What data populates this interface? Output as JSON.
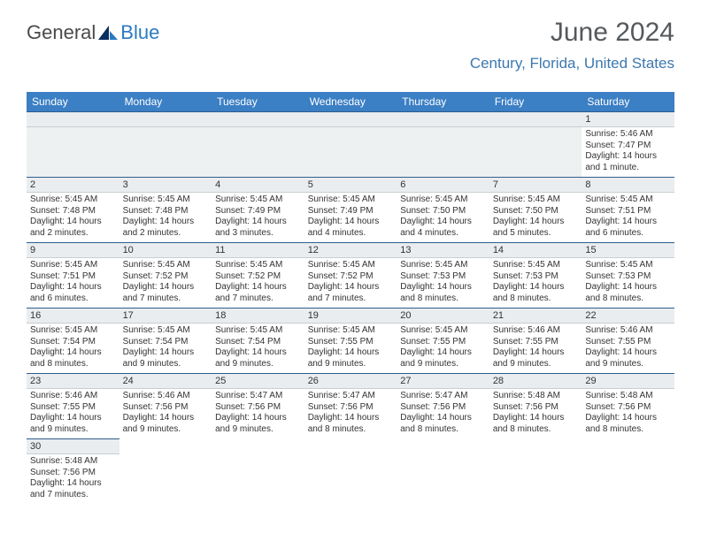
{
  "brand": {
    "part1": "General",
    "part2": "Blue"
  },
  "title": "June 2024",
  "location": "Century, Florida, United States",
  "colors": {
    "header_bg": "#3b7fc4",
    "header_text": "#ffffff",
    "accent": "#3c78b0",
    "daynum_bg": "#e9edef",
    "border": "#2f5d8f"
  },
  "weekdays": [
    "Sunday",
    "Monday",
    "Tuesday",
    "Wednesday",
    "Thursday",
    "Friday",
    "Saturday"
  ],
  "lead_empty": 6,
  "days": [
    {
      "n": "1",
      "sunrise": "Sunrise: 5:46 AM",
      "sunset": "Sunset: 7:47 PM",
      "daylight1": "Daylight: 14 hours",
      "daylight2": "and 1 minute."
    },
    {
      "n": "2",
      "sunrise": "Sunrise: 5:45 AM",
      "sunset": "Sunset: 7:48 PM",
      "daylight1": "Daylight: 14 hours",
      "daylight2": "and 2 minutes."
    },
    {
      "n": "3",
      "sunrise": "Sunrise: 5:45 AM",
      "sunset": "Sunset: 7:48 PM",
      "daylight1": "Daylight: 14 hours",
      "daylight2": "and 2 minutes."
    },
    {
      "n": "4",
      "sunrise": "Sunrise: 5:45 AM",
      "sunset": "Sunset: 7:49 PM",
      "daylight1": "Daylight: 14 hours",
      "daylight2": "and 3 minutes."
    },
    {
      "n": "5",
      "sunrise": "Sunrise: 5:45 AM",
      "sunset": "Sunset: 7:49 PM",
      "daylight1": "Daylight: 14 hours",
      "daylight2": "and 4 minutes."
    },
    {
      "n": "6",
      "sunrise": "Sunrise: 5:45 AM",
      "sunset": "Sunset: 7:50 PM",
      "daylight1": "Daylight: 14 hours",
      "daylight2": "and 4 minutes."
    },
    {
      "n": "7",
      "sunrise": "Sunrise: 5:45 AM",
      "sunset": "Sunset: 7:50 PM",
      "daylight1": "Daylight: 14 hours",
      "daylight2": "and 5 minutes."
    },
    {
      "n": "8",
      "sunrise": "Sunrise: 5:45 AM",
      "sunset": "Sunset: 7:51 PM",
      "daylight1": "Daylight: 14 hours",
      "daylight2": "and 6 minutes."
    },
    {
      "n": "9",
      "sunrise": "Sunrise: 5:45 AM",
      "sunset": "Sunset: 7:51 PM",
      "daylight1": "Daylight: 14 hours",
      "daylight2": "and 6 minutes."
    },
    {
      "n": "10",
      "sunrise": "Sunrise: 5:45 AM",
      "sunset": "Sunset: 7:52 PM",
      "daylight1": "Daylight: 14 hours",
      "daylight2": "and 7 minutes."
    },
    {
      "n": "11",
      "sunrise": "Sunrise: 5:45 AM",
      "sunset": "Sunset: 7:52 PM",
      "daylight1": "Daylight: 14 hours",
      "daylight2": "and 7 minutes."
    },
    {
      "n": "12",
      "sunrise": "Sunrise: 5:45 AM",
      "sunset": "Sunset: 7:52 PM",
      "daylight1": "Daylight: 14 hours",
      "daylight2": "and 7 minutes."
    },
    {
      "n": "13",
      "sunrise": "Sunrise: 5:45 AM",
      "sunset": "Sunset: 7:53 PM",
      "daylight1": "Daylight: 14 hours",
      "daylight2": "and 8 minutes."
    },
    {
      "n": "14",
      "sunrise": "Sunrise: 5:45 AM",
      "sunset": "Sunset: 7:53 PM",
      "daylight1": "Daylight: 14 hours",
      "daylight2": "and 8 minutes."
    },
    {
      "n": "15",
      "sunrise": "Sunrise: 5:45 AM",
      "sunset": "Sunset: 7:53 PM",
      "daylight1": "Daylight: 14 hours",
      "daylight2": "and 8 minutes."
    },
    {
      "n": "16",
      "sunrise": "Sunrise: 5:45 AM",
      "sunset": "Sunset: 7:54 PM",
      "daylight1": "Daylight: 14 hours",
      "daylight2": "and 8 minutes."
    },
    {
      "n": "17",
      "sunrise": "Sunrise: 5:45 AM",
      "sunset": "Sunset: 7:54 PM",
      "daylight1": "Daylight: 14 hours",
      "daylight2": "and 9 minutes."
    },
    {
      "n": "18",
      "sunrise": "Sunrise: 5:45 AM",
      "sunset": "Sunset: 7:54 PM",
      "daylight1": "Daylight: 14 hours",
      "daylight2": "and 9 minutes."
    },
    {
      "n": "19",
      "sunrise": "Sunrise: 5:45 AM",
      "sunset": "Sunset: 7:55 PM",
      "daylight1": "Daylight: 14 hours",
      "daylight2": "and 9 minutes."
    },
    {
      "n": "20",
      "sunrise": "Sunrise: 5:45 AM",
      "sunset": "Sunset: 7:55 PM",
      "daylight1": "Daylight: 14 hours",
      "daylight2": "and 9 minutes."
    },
    {
      "n": "21",
      "sunrise": "Sunrise: 5:46 AM",
      "sunset": "Sunset: 7:55 PM",
      "daylight1": "Daylight: 14 hours",
      "daylight2": "and 9 minutes."
    },
    {
      "n": "22",
      "sunrise": "Sunrise: 5:46 AM",
      "sunset": "Sunset: 7:55 PM",
      "daylight1": "Daylight: 14 hours",
      "daylight2": "and 9 minutes."
    },
    {
      "n": "23",
      "sunrise": "Sunrise: 5:46 AM",
      "sunset": "Sunset: 7:55 PM",
      "daylight1": "Daylight: 14 hours",
      "daylight2": "and 9 minutes."
    },
    {
      "n": "24",
      "sunrise": "Sunrise: 5:46 AM",
      "sunset": "Sunset: 7:56 PM",
      "daylight1": "Daylight: 14 hours",
      "daylight2": "and 9 minutes."
    },
    {
      "n": "25",
      "sunrise": "Sunrise: 5:47 AM",
      "sunset": "Sunset: 7:56 PM",
      "daylight1": "Daylight: 14 hours",
      "daylight2": "and 9 minutes."
    },
    {
      "n": "26",
      "sunrise": "Sunrise: 5:47 AM",
      "sunset": "Sunset: 7:56 PM",
      "daylight1": "Daylight: 14 hours",
      "daylight2": "and 8 minutes."
    },
    {
      "n": "27",
      "sunrise": "Sunrise: 5:47 AM",
      "sunset": "Sunset: 7:56 PM",
      "daylight1": "Daylight: 14 hours",
      "daylight2": "and 8 minutes."
    },
    {
      "n": "28",
      "sunrise": "Sunrise: 5:48 AM",
      "sunset": "Sunset: 7:56 PM",
      "daylight1": "Daylight: 14 hours",
      "daylight2": "and 8 minutes."
    },
    {
      "n": "29",
      "sunrise": "Sunrise: 5:48 AM",
      "sunset": "Sunset: 7:56 PM",
      "daylight1": "Daylight: 14 hours",
      "daylight2": "and 8 minutes."
    },
    {
      "n": "30",
      "sunrise": "Sunrise: 5:48 AM",
      "sunset": "Sunset: 7:56 PM",
      "daylight1": "Daylight: 14 hours",
      "daylight2": "and 7 minutes."
    }
  ]
}
